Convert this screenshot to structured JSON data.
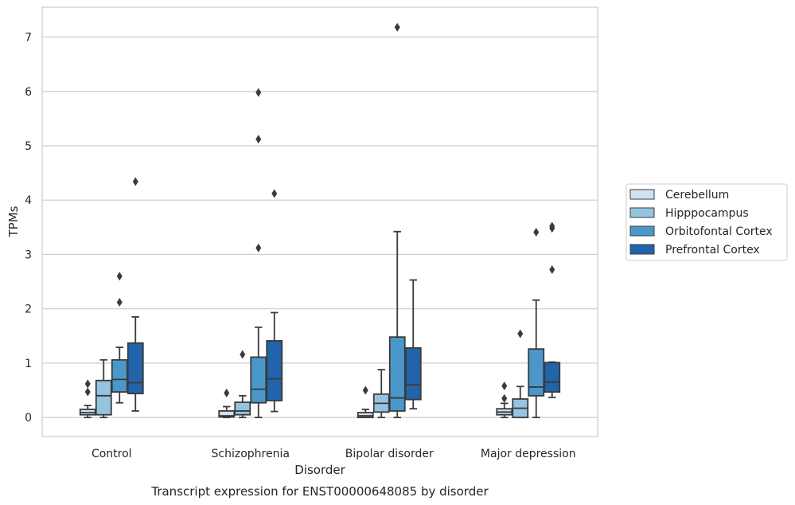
{
  "chart_data": {
    "type": "boxplot",
    "title": "Transcript expression for ENST00000648085 by disorder",
    "xlabel": "Disorder",
    "ylabel": "TPMs",
    "ylim": [
      -0.35,
      7.55
    ],
    "yticks": [
      0,
      1,
      2,
      3,
      4,
      5,
      6,
      7
    ],
    "categories": [
      "Control",
      "Schizophrenia",
      "Bipolar disorder",
      "Major depression"
    ],
    "grid": "horizontal",
    "legend_position": "right",
    "series": [
      {
        "name": "Cerebellum",
        "color": "#d0e1f2",
        "boxes": [
          {
            "whislo": 0.0,
            "q1": 0.05,
            "med": 0.09,
            "q3": 0.15,
            "whishi": 0.22,
            "fliers": [
              0.47,
              0.62
            ]
          },
          {
            "whislo": 0.0,
            "q1": 0.01,
            "med": 0.03,
            "q3": 0.12,
            "whishi": 0.2,
            "fliers": [
              0.45
            ]
          },
          {
            "whislo": 0.0,
            "q1": 0.0,
            "med": 0.03,
            "q3": 0.09,
            "whishi": 0.15,
            "fliers": [
              0.5
            ]
          },
          {
            "whislo": 0.0,
            "q1": 0.05,
            "med": 0.1,
            "q3": 0.16,
            "whishi": 0.26,
            "fliers": [
              0.35,
              0.58
            ]
          }
        ]
      },
      {
        "name": "Hipppocampus",
        "color": "#94c4df",
        "boxes": [
          {
            "whislo": 0.0,
            "q1": 0.05,
            "med": 0.4,
            "q3": 0.68,
            "whishi": 1.06,
            "fliers": []
          },
          {
            "whislo": 0.0,
            "q1": 0.05,
            "med": 0.12,
            "q3": 0.28,
            "whishi": 0.4,
            "fliers": [
              1.16
            ]
          },
          {
            "whislo": 0.0,
            "q1": 0.1,
            "med": 0.26,
            "q3": 0.43,
            "whishi": 0.88,
            "fliers": []
          },
          {
            "whislo": 0.0,
            "q1": 0.0,
            "med": 0.17,
            "q3": 0.34,
            "whishi": 0.57,
            "fliers": [
              1.54
            ]
          }
        ]
      },
      {
        "name": "Orbitofontal Cortex",
        "color": "#4a98c9",
        "boxes": [
          {
            "whislo": 0.27,
            "q1": 0.47,
            "med": 0.7,
            "q3": 1.06,
            "whishi": 1.29,
            "fliers": [
              2.12,
              2.6
            ]
          },
          {
            "whislo": 0.0,
            "q1": 0.27,
            "med": 0.52,
            "q3": 1.11,
            "whishi": 1.66,
            "fliers": [
              3.12,
              5.12,
              5.98
            ]
          },
          {
            "whislo": 0.0,
            "q1": 0.12,
            "med": 0.36,
            "q3": 1.48,
            "whishi": 3.42,
            "fliers": [
              7.18
            ]
          },
          {
            "whislo": 0.0,
            "q1": 0.4,
            "med": 0.56,
            "q3": 1.26,
            "whishi": 2.16,
            "fliers": [
              3.41
            ]
          }
        ]
      },
      {
        "name": "Prefrontal Cortex",
        "color": "#2164ab",
        "boxes": [
          {
            "whislo": 0.12,
            "q1": 0.44,
            "med": 0.64,
            "q3": 1.37,
            "whishi": 1.85,
            "fliers": [
              4.34
            ]
          },
          {
            "whislo": 0.11,
            "q1": 0.31,
            "med": 0.71,
            "q3": 1.41,
            "whishi": 1.93,
            "fliers": [
              4.12
            ]
          },
          {
            "whislo": 0.16,
            "q1": 0.33,
            "med": 0.6,
            "q3": 1.28,
            "whishi": 2.53,
            "fliers": []
          },
          {
            "whislo": 0.37,
            "q1": 0.47,
            "med": 0.65,
            "q3": 1.01,
            "whishi": 1.02,
            "fliers": [
              2.72,
              3.48,
              3.52
            ]
          }
        ]
      }
    ]
  }
}
